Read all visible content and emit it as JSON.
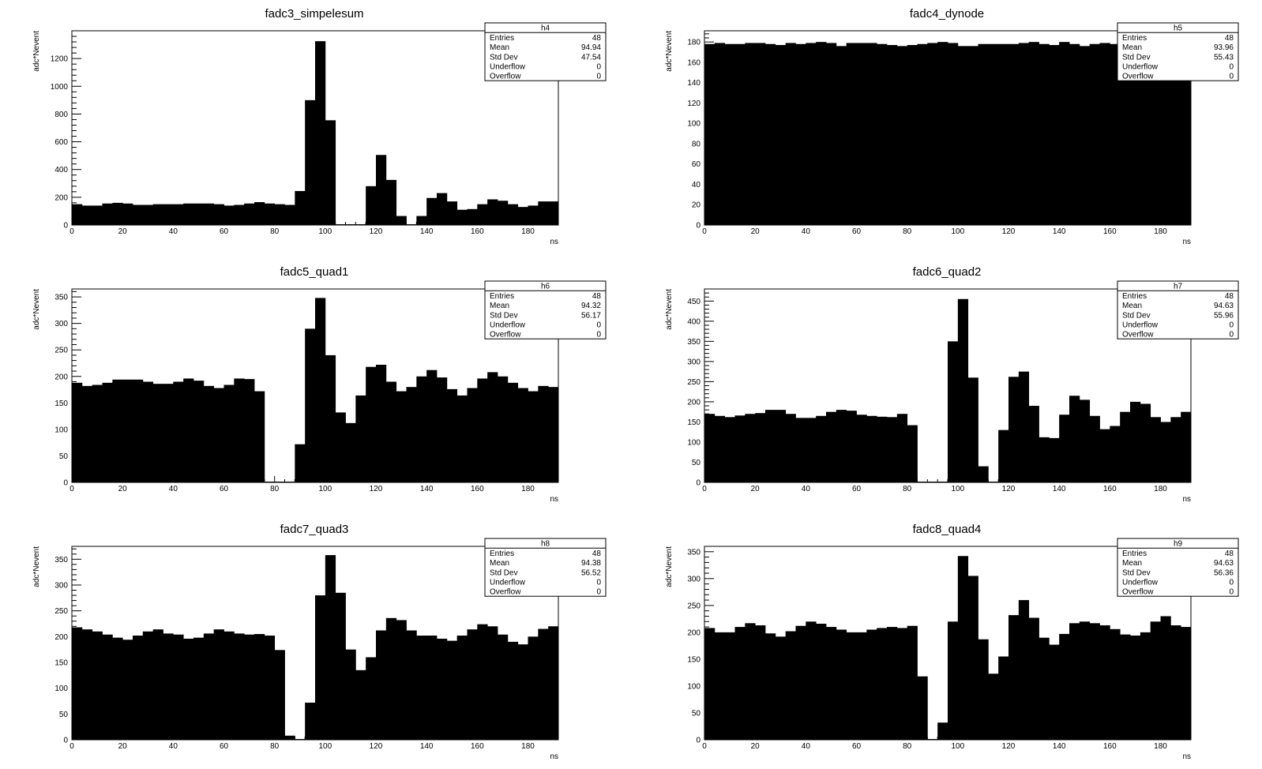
{
  "chart_data": [
    {
      "type": "bar",
      "title": "fadc3_simpelesum",
      "xlabel": "ns",
      "ylabel": "adc*Nevent",
      "xlim": [
        0,
        192
      ],
      "ylim": [
        0,
        1400
      ],
      "xticks": [
        0,
        20,
        40,
        60,
        80,
        100,
        120,
        140,
        160,
        180
      ],
      "yticks": [
        0,
        200,
        400,
        600,
        800,
        1000,
        1200
      ],
      "bin_width": 4,
      "values": [
        150,
        140,
        140,
        155,
        160,
        155,
        145,
        145,
        150,
        150,
        150,
        155,
        155,
        155,
        150,
        140,
        145,
        155,
        165,
        155,
        150,
        145,
        245,
        900,
        1325,
        755,
        0,
        0,
        0,
        280,
        505,
        325,
        65,
        0,
        65,
        195,
        230,
        170,
        110,
        115,
        150,
        185,
        175,
        150,
        130,
        140,
        170,
        170
      ],
      "stats": {
        "name": "h4",
        "rows": [
          [
            "Entries",
            "48"
          ],
          [
            "Mean",
            "94.94"
          ],
          [
            "Std Dev",
            "47.54"
          ],
          [
            "Underflow",
            "0"
          ],
          [
            "Overflow",
            "0"
          ]
        ]
      }
    },
    {
      "type": "bar",
      "title": "fadc4_dynode",
      "xlabel": "ns",
      "ylabel": "adc*Nevent",
      "xlim": [
        0,
        192
      ],
      "ylim": [
        0,
        191
      ],
      "xticks": [
        0,
        20,
        40,
        60,
        80,
        100,
        120,
        140,
        160,
        180
      ],
      "yticks": [
        0,
        20,
        40,
        60,
        80,
        100,
        120,
        140,
        160,
        180
      ],
      "bin_width": 4,
      "values": [
        178,
        179,
        178,
        178,
        179,
        179,
        178,
        177,
        179,
        178,
        179,
        180,
        179,
        176,
        179,
        179,
        179,
        178,
        177,
        176,
        177,
        178,
        179,
        180,
        179,
        176,
        176,
        178,
        178,
        178,
        178,
        179,
        180,
        178,
        177,
        180,
        178,
        176,
        178,
        179,
        178,
        178,
        178,
        177,
        178,
        178,
        178,
        178
      ],
      "stats": {
        "name": "h5",
        "rows": [
          [
            "Entries",
            "48"
          ],
          [
            "Mean",
            "93.96"
          ],
          [
            "Std Dev",
            "55.43"
          ],
          [
            "Underflow",
            "0"
          ],
          [
            "Overflow",
            "0"
          ]
        ]
      }
    },
    {
      "type": "bar",
      "title": "fadc5_quad1",
      "xlabel": "ns",
      "ylabel": "adc*Nevent",
      "xlim": [
        0,
        192
      ],
      "ylim": [
        0,
        365
      ],
      "xticks": [
        0,
        20,
        40,
        60,
        80,
        100,
        120,
        140,
        160,
        180
      ],
      "yticks": [
        0,
        50,
        100,
        150,
        200,
        250,
        300,
        350
      ],
      "bin_width": 4,
      "values": [
        188,
        182,
        184,
        188,
        194,
        194,
        194,
        190,
        186,
        186,
        190,
        196,
        192,
        182,
        178,
        184,
        196,
        195,
        172,
        0,
        0,
        0,
        72,
        290,
        348,
        240,
        132,
        112,
        164,
        218,
        222,
        190,
        172,
        180,
        200,
        212,
        198,
        176,
        164,
        178,
        196,
        208,
        200,
        188,
        178,
        172,
        182,
        180
      ],
      "stats": {
        "name": "h6",
        "rows": [
          [
            "Entries",
            "48"
          ],
          [
            "Mean",
            "94.32"
          ],
          [
            "Std Dev",
            "56.17"
          ],
          [
            "Underflow",
            "0"
          ],
          [
            "Overflow",
            "0"
          ]
        ]
      }
    },
    {
      "type": "bar",
      "title": "fadc6_quad2",
      "xlabel": "ns",
      "ylabel": "adc*Nevent",
      "xlim": [
        0,
        192
      ],
      "ylim": [
        0,
        480
      ],
      "xticks": [
        0,
        20,
        40,
        60,
        80,
        100,
        120,
        140,
        160,
        180
      ],
      "yticks": [
        0,
        50,
        100,
        150,
        200,
        250,
        300,
        350,
        400,
        450
      ],
      "bin_width": 4,
      "values": [
        170,
        165,
        162,
        166,
        170,
        172,
        180,
        180,
        170,
        160,
        160,
        165,
        175,
        180,
        178,
        168,
        165,
        163,
        162,
        170,
        142,
        0,
        0,
        0,
        350,
        455,
        260,
        40,
        0,
        130,
        262,
        275,
        190,
        112,
        110,
        168,
        215,
        205,
        165,
        132,
        140,
        175,
        200,
        195,
        162,
        150,
        162,
        175
      ],
      "stats": {
        "name": "h7",
        "rows": [
          [
            "Entries",
            "48"
          ],
          [
            "Mean",
            "94.63"
          ],
          [
            "Std Dev",
            "55.96"
          ],
          [
            "Underflow",
            "0"
          ],
          [
            "Overflow",
            "0"
          ]
        ]
      }
    },
    {
      "type": "bar",
      "title": "fadc7_quad3",
      "xlabel": "ns",
      "ylabel": "adc*Nevent",
      "xlim": [
        0,
        192
      ],
      "ylim": [
        0,
        375
      ],
      "xticks": [
        0,
        20,
        40,
        60,
        80,
        100,
        120,
        140,
        160,
        180
      ],
      "yticks": [
        0,
        50,
        100,
        150,
        200,
        250,
        300,
        350
      ],
      "bin_width": 4,
      "values": [
        218,
        214,
        210,
        204,
        198,
        194,
        202,
        210,
        214,
        206,
        204,
        196,
        198,
        206,
        214,
        210,
        206,
        204,
        205,
        202,
        174,
        8,
        0,
        72,
        280,
        358,
        285,
        175,
        135,
        160,
        212,
        236,
        232,
        212,
        202,
        202,
        196,
        192,
        202,
        214,
        224,
        220,
        204,
        190,
        185,
        200,
        215,
        220
      ],
      "stats": {
        "name": "h8",
        "rows": [
          [
            "Entries",
            "48"
          ],
          [
            "Mean",
            "94.38"
          ],
          [
            "Std Dev",
            "56.52"
          ],
          [
            "Underflow",
            "0"
          ],
          [
            "Overflow",
            "0"
          ]
        ]
      }
    },
    {
      "type": "bar",
      "title": "fadc8_quad4",
      "xlabel": "ns",
      "ylabel": "adc*Nevent",
      "xlim": [
        0,
        192
      ],
      "ylim": [
        0,
        360
      ],
      "xticks": [
        0,
        20,
        40,
        60,
        80,
        100,
        120,
        140,
        160,
        180
      ],
      "yticks": [
        0,
        50,
        100,
        150,
        200,
        250,
        300,
        350
      ],
      "bin_width": 4,
      "values": [
        208,
        200,
        200,
        210,
        217,
        213,
        198,
        192,
        202,
        212,
        220,
        216,
        210,
        205,
        200,
        200,
        205,
        208,
        210,
        208,
        212,
        118,
        0,
        32,
        220,
        342,
        305,
        187,
        123,
        155,
        232,
        260,
        227,
        190,
        177,
        197,
        217,
        220,
        217,
        213,
        206,
        196,
        194,
        200,
        220,
        230,
        213,
        210
      ],
      "stats": {
        "name": "h9",
        "rows": [
          [
            "Entries",
            "48"
          ],
          [
            "Mean",
            "94.63"
          ],
          [
            "Std Dev",
            "56.36"
          ],
          [
            "Underflow",
            "0"
          ],
          [
            "Overflow",
            "0"
          ]
        ]
      }
    }
  ]
}
